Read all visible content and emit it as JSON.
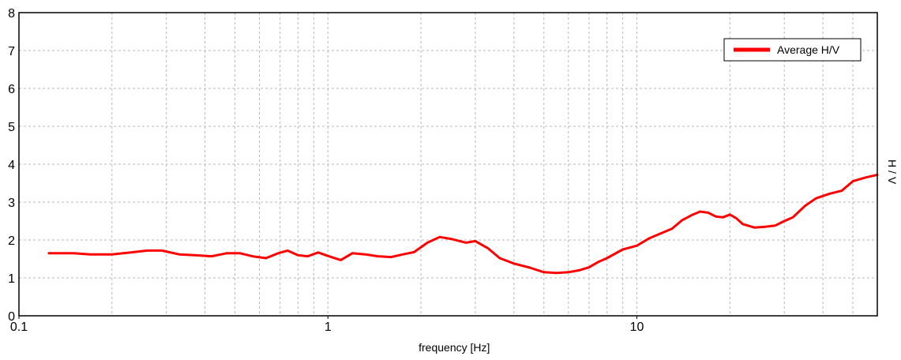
{
  "chart_data": {
    "type": "line",
    "title": "",
    "xlabel": "frequency [Hz]",
    "ylabel": "H / V",
    "x_scale": "log",
    "xlim": [
      0.1,
      60
    ],
    "ylim": [
      0,
      8
    ],
    "x_tick_labels": [
      "0.1",
      "1",
      "10"
    ],
    "y_tick_labels": [
      "0",
      "1",
      "2",
      "3",
      "4",
      "5",
      "6",
      "7",
      "8"
    ],
    "grid": true,
    "legend_position": "top-right",
    "series": [
      {
        "name": "Average H/V",
        "color": "#ff0000",
        "x": [
          0.125,
          0.15,
          0.17,
          0.2,
          0.23,
          0.26,
          0.29,
          0.33,
          0.37,
          0.42,
          0.47,
          0.52,
          0.57,
          0.63,
          0.69,
          0.74,
          0.8,
          0.86,
          0.93,
          1.0,
          1.1,
          1.2,
          1.32,
          1.45,
          1.6,
          1.75,
          1.9,
          2.1,
          2.3,
          2.5,
          2.8,
          3.0,
          3.3,
          3.6,
          4.0,
          4.5,
          5.0,
          5.5,
          6.0,
          6.5,
          7.0,
          7.5,
          8.0,
          9.0,
          10.0,
          11.0,
          12.0,
          13.0,
          14.0,
          15.0,
          16.0,
          17.0,
          18.0,
          19.0,
          20.0,
          21.0,
          22.0,
          24.0,
          26.0,
          28.0,
          30.0,
          32.0,
          35.0,
          38.0,
          42.0,
          46.0,
          50.0,
          55.0,
          60.0
        ],
        "y": [
          1.65,
          1.65,
          1.62,
          1.62,
          1.67,
          1.72,
          1.72,
          1.62,
          1.6,
          1.57,
          1.65,
          1.65,
          1.57,
          1.52,
          1.65,
          1.72,
          1.6,
          1.57,
          1.67,
          1.58,
          1.47,
          1.65,
          1.62,
          1.57,
          1.55,
          1.62,
          1.68,
          1.93,
          2.08,
          2.03,
          1.93,
          1.97,
          1.78,
          1.52,
          1.38,
          1.27,
          1.15,
          1.13,
          1.15,
          1.2,
          1.28,
          1.42,
          1.52,
          1.75,
          1.85,
          2.05,
          2.18,
          2.3,
          2.52,
          2.65,
          2.75,
          2.72,
          2.62,
          2.6,
          2.67,
          2.57,
          2.42,
          2.33,
          2.35,
          2.38,
          2.5,
          2.6,
          2.9,
          3.1,
          3.22,
          3.3,
          3.55,
          3.65,
          3.72
        ]
      }
    ]
  }
}
